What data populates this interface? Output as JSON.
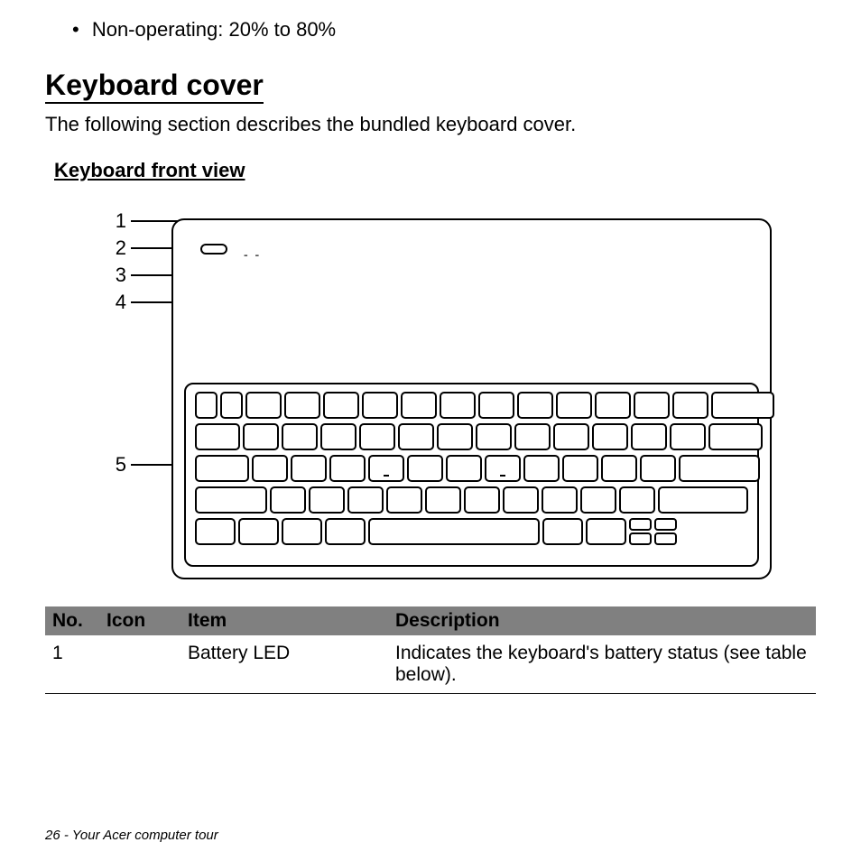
{
  "bullet": "Non-operating: 20% to 80%",
  "heading": "Keyboard cover",
  "intro": "The following section describes the bundled keyboard cover.",
  "subheading": "Keyboard front view",
  "callouts": {
    "c1": "1",
    "c2": "2",
    "c3": "3",
    "c4": "4",
    "c5": "5"
  },
  "diagram": {
    "rows": [
      [
        25,
        25,
        40,
        40,
        40,
        40,
        40,
        40,
        40,
        40,
        40,
        40,
        40,
        40,
        70
      ],
      [
        50,
        40,
        40,
        40,
        40,
        40,
        40,
        40,
        40,
        40,
        40,
        40,
        40,
        60
      ],
      [
        60,
        40,
        40,
        40,
        40,
        40,
        40,
        40,
        40,
        40,
        40,
        40,
        90
      ],
      [
        80,
        40,
        40,
        40,
        40,
        40,
        40,
        40,
        40,
        40,
        40,
        100
      ],
      [
        45,
        45,
        45,
        45,
        190,
        45,
        45,
        25,
        25
      ]
    ],
    "bump_row": 2,
    "bump_cols": [
      4,
      7
    ],
    "split_row": 4,
    "split_cols": [
      7,
      8
    ],
    "outline_color": "#000000",
    "background_color": "#ffffff",
    "border_radius": 5,
    "key_height": 30
  },
  "table": {
    "headers": {
      "no": "No.",
      "icon": "Icon",
      "item": "Item",
      "description": "Description"
    },
    "rows": [
      {
        "no": "1",
        "icon": "",
        "item": "Battery LED",
        "description": "Indicates the keyboard's battery status (see table below)."
      }
    ],
    "header_bg": "#808080",
    "col_widths": [
      "60px",
      "90px",
      "230px",
      "auto"
    ]
  },
  "footer": {
    "page": "26",
    "sep": " - ",
    "title": "Your Acer computer tour"
  }
}
